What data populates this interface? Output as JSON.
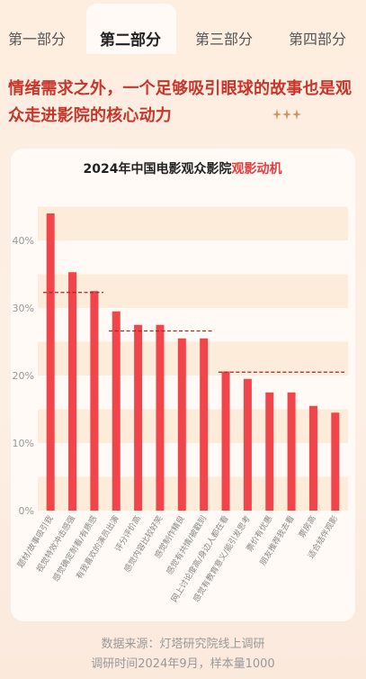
{
  "tabs": [
    "第一部分",
    "第二部分",
    "第三部分",
    "第四部分"
  ],
  "active_tab": 1,
  "headline": "情绪需求之外，一个足够吸引眼球的故事也是观众走进影院的核心动力",
  "chart_data": {
    "type": "bar",
    "title": "2024年中国电影观众影院",
    "title_highlight": "观影动机",
    "categories": [
      "题材/故事吸引我",
      "视觉特效冲击感强",
      "感觉确定耐看/有质感",
      "有我喜欢的演员出演",
      "评分评价高",
      "感觉内容比较好笑",
      "感觉制作精良",
      "感觉有共情/被戳到",
      "网上讨论度高/身边人都在看",
      "感觉有教育意义/能引发思考",
      "票价有优惠",
      "朋友推荐我去看",
      "票房高",
      "适合结伴观影"
    ],
    "values": [
      44,
      35.3,
      32.5,
      29.5,
      27.5,
      27.5,
      25.5,
      25.5,
      20.6,
      19.5,
      17.5,
      17.5,
      15.5,
      14.5
    ],
    "color": "#f2454b",
    "ylim": [
      0,
      45
    ],
    "yticks": [
      {
        "value": 0,
        "label": "0%"
      },
      {
        "value": 10,
        "label": "10%"
      },
      {
        "value": 20,
        "label": "20%"
      },
      {
        "value": 30,
        "label": "30%"
      },
      {
        "value": 40,
        "label": "40%"
      }
    ],
    "reference_lines": [
      {
        "value": 32.3,
        "from": 0,
        "to": 2
      },
      {
        "value": 26.6,
        "from": 3,
        "to": 7
      },
      {
        "value": 20.5,
        "from": 8,
        "to": 13
      }
    ],
    "reference_color": "#a3262a"
  },
  "footer": [
    "数据来源：灯塔研究院线上调研",
    "调研时间2024年9月，样本量1000"
  ]
}
